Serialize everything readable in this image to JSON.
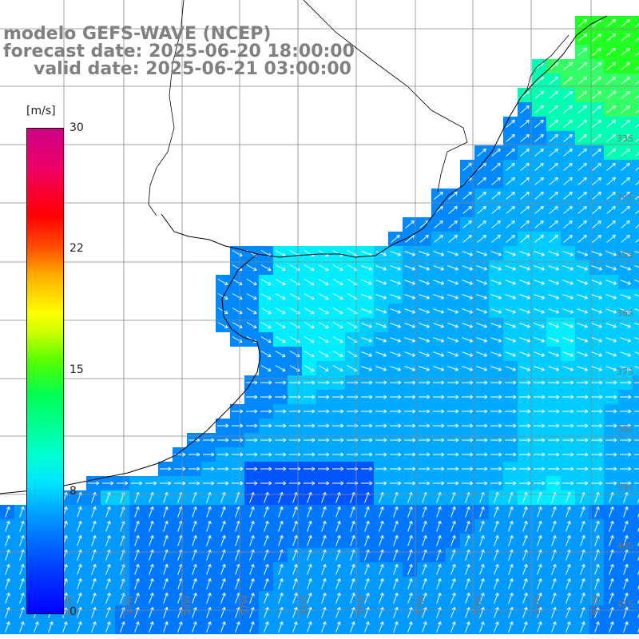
{
  "header": {
    "line1": "modelo GEFS-WAVE (NCEP)",
    "line2": "forecast date: 2025-06-20 18:00:00",
    "line3": "valid date: 2025-06-21 03:00:00"
  },
  "colorbar": {
    "unit": "[m/s]",
    "ticks": [
      "30",
      "22",
      "15",
      "8",
      "0"
    ],
    "tick_values": [
      30,
      22,
      15,
      8,
      0
    ],
    "colors": [
      "#0000ff",
      "#0099ff",
      "#00ffcc",
      "#00ff00",
      "#ffff00",
      "#ff7700",
      "#ff0000",
      "#cc0088"
    ]
  },
  "map": {
    "lat_labels": [
      "33S",
      "34S",
      "35S",
      "36S",
      "37S",
      "38S",
      "39S",
      "40S",
      "41S"
    ],
    "lon_labels": [
      "60W",
      "59W",
      "58W",
      "57W",
      "56W",
      "55W",
      "54W",
      "53W",
      "52W",
      "51W"
    ],
    "field": "wind speed and direction",
    "land_color": "#ffffff",
    "coast_color": "#000000",
    "arrow_color": "#ffffff"
  }
}
